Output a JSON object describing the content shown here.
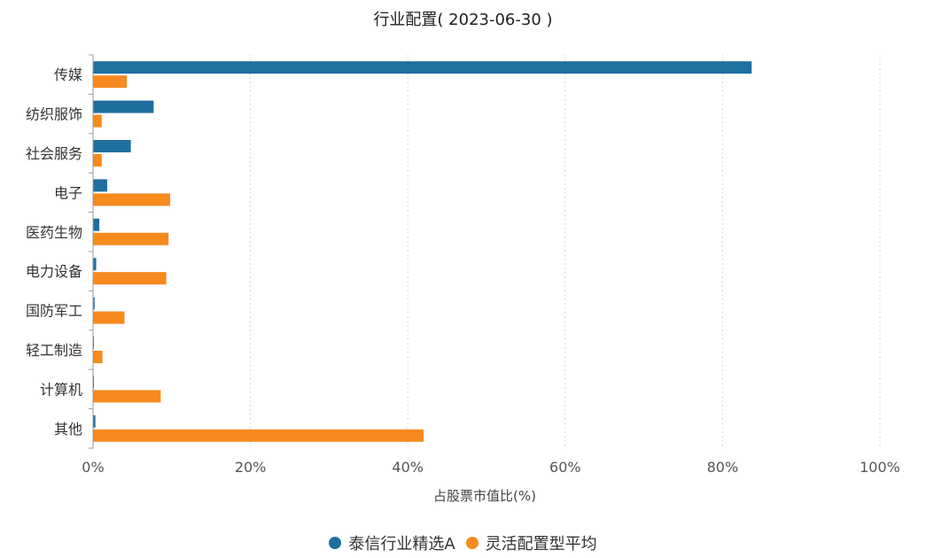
{
  "chart_data": {
    "type": "bar",
    "orientation": "horizontal",
    "title": "行业配置( 2023-06-30 )",
    "xlabel": "占股票市值比(%)",
    "ylabel": "",
    "xlim": [
      0,
      100
    ],
    "x_ticks": [
      "0%",
      "20%",
      "40%",
      "60%",
      "80%",
      "100%"
    ],
    "grid": "vertical dashed",
    "legend_position": "bottom",
    "categories": [
      "传媒",
      "纺织服饰",
      "社会服务",
      "电子",
      "医药生物",
      "电力设备",
      "国防军工",
      "轻工制造",
      "计算机",
      "其他"
    ],
    "series": [
      {
        "name": "泰信行业精选A",
        "color": "#1f6f9f",
        "values": [
          83.7,
          7.7,
          4.8,
          1.8,
          0.8,
          0.4,
          0.2,
          0.1,
          0.1,
          0.3
        ]
      },
      {
        "name": "灵活配置型平均",
        "color": "#f68a1e",
        "values": [
          4.3,
          1.1,
          1.1,
          9.8,
          9.6,
          9.3,
          4.0,
          1.2,
          8.6,
          42.0
        ]
      }
    ]
  }
}
